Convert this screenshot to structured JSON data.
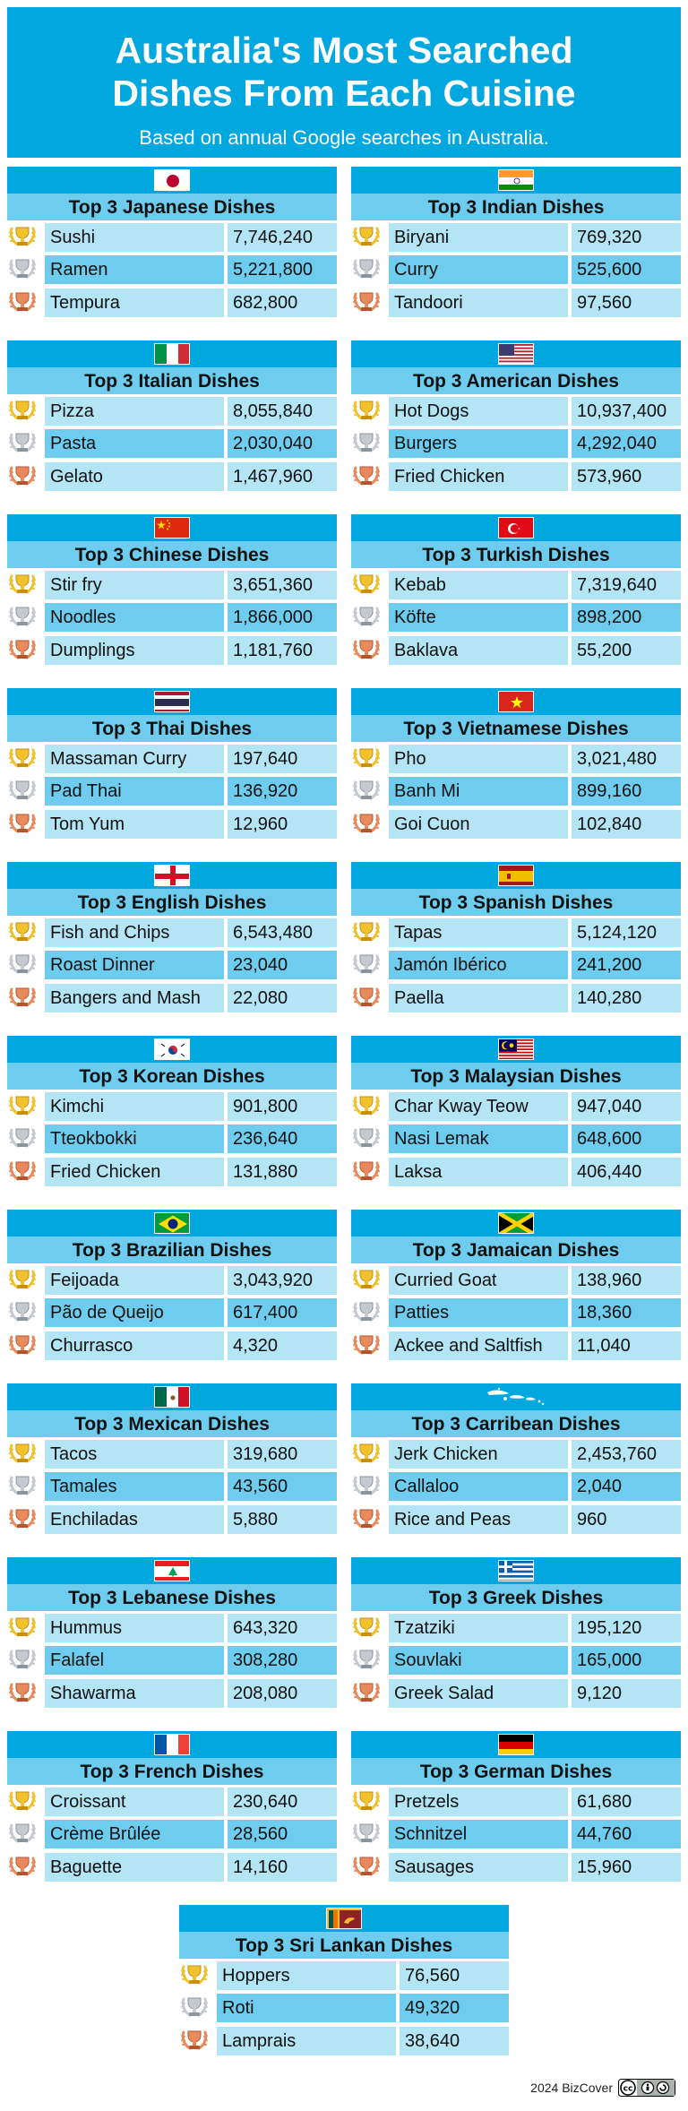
{
  "header": {
    "title": "Australia's Most Searched\nDishes From Each Cuisine",
    "subtitle": "Based on annual Google searches in Australia."
  },
  "colors": {
    "header_bg": "#01a7df",
    "title_bar": "#6ecdee",
    "row_light": "#b3e5f5",
    "row_mid": "#6ecdee",
    "gold": "#f2c12e",
    "silver": "#b8bfc6",
    "bronze": "#e0764b"
  },
  "chart_data": {
    "type": "table",
    "title": "Australia's Most Searched Dishes From Each Cuisine",
    "subtitle": "Based on annual Google searches in Australia.",
    "cards": [
      {
        "title": "Top 3 Japanese Dishes",
        "flag": "japan-flag",
        "rows": [
          {
            "dish": "Sushi",
            "value": "7,746,240"
          },
          {
            "dish": "Ramen",
            "value": "5,221,800"
          },
          {
            "dish": "Tempura",
            "value": "682,800"
          }
        ]
      },
      {
        "title": "Top 3 Indian Dishes",
        "flag": "india-flag",
        "rows": [
          {
            "dish": "Biryani",
            "value": "769,320"
          },
          {
            "dish": "Curry",
            "value": "525,600"
          },
          {
            "dish": "Tandoori",
            "value": "97,560"
          }
        ]
      },
      {
        "title": "Top 3 Italian Dishes",
        "flag": "italy-flag",
        "rows": [
          {
            "dish": "Pizza",
            "value": "8,055,840"
          },
          {
            "dish": "Pasta",
            "value": "2,030,040"
          },
          {
            "dish": "Gelato",
            "value": "1,467,960"
          }
        ]
      },
      {
        "title": "Top 3 American Dishes",
        "flag": "usa-flag",
        "rows": [
          {
            "dish": "Hot Dogs",
            "value": "10,937,400"
          },
          {
            "dish": "Burgers",
            "value": "4,292,040"
          },
          {
            "dish": "Fried Chicken",
            "value": "573,960"
          }
        ]
      },
      {
        "title": "Top 3 Chinese Dishes",
        "flag": "china-flag",
        "rows": [
          {
            "dish": "Stir fry",
            "value": "3,651,360"
          },
          {
            "dish": "Noodles",
            "value": "1,866,000"
          },
          {
            "dish": "Dumplings",
            "value": "1,181,760"
          }
        ]
      },
      {
        "title": "Top 3 Turkish Dishes",
        "flag": "turkey-flag",
        "rows": [
          {
            "dish": "Kebab",
            "value": "7,319,640"
          },
          {
            "dish": "Köfte",
            "value": "898,200"
          },
          {
            "dish": "Baklava",
            "value": "55,200"
          }
        ]
      },
      {
        "title": "Top 3 Thai Dishes",
        "flag": "thailand-flag",
        "rows": [
          {
            "dish": "Massaman Curry",
            "value": "197,640"
          },
          {
            "dish": "Pad Thai",
            "value": "136,920"
          },
          {
            "dish": "Tom Yum",
            "value": "12,960"
          }
        ]
      },
      {
        "title": "Top 3 Vietnamese Dishes",
        "flag": "vietnam-flag",
        "rows": [
          {
            "dish": "Pho",
            "value": "3,021,480"
          },
          {
            "dish": "Banh Mi",
            "value": "899,160"
          },
          {
            "dish": "Goi Cuon",
            "value": "102,840"
          }
        ]
      },
      {
        "title": "Top 3 English Dishes",
        "flag": "england-flag",
        "rows": [
          {
            "dish": "Fish and Chips",
            "value": "6,543,480"
          },
          {
            "dish": "Roast Dinner",
            "value": "23,040"
          },
          {
            "dish": "Bangers and Mash",
            "value": "22,080"
          }
        ]
      },
      {
        "title": "Top 3 Spanish Dishes",
        "flag": "spain-flag",
        "rows": [
          {
            "dish": "Tapas",
            "value": "5,124,120"
          },
          {
            "dish": "Jamón Ibérico",
            "value": "241,200"
          },
          {
            "dish": "Paella",
            "value": "140,280"
          }
        ]
      },
      {
        "title": "Top 3 Korean Dishes",
        "flag": "korea-flag",
        "rows": [
          {
            "dish": "Kimchi",
            "value": "901,800"
          },
          {
            "dish": "Tteokbokki",
            "value": "236,640"
          },
          {
            "dish": "Fried Chicken",
            "value": "131,880"
          }
        ]
      },
      {
        "title": "Top 3 Malaysian Dishes",
        "flag": "malaysia-flag",
        "rows": [
          {
            "dish": "Char Kway Teow",
            "value": "947,040"
          },
          {
            "dish": "Nasi Lemak",
            "value": "648,600"
          },
          {
            "dish": "Laksa",
            "value": "406,440"
          }
        ]
      },
      {
        "title": "Top 3 Brazilian Dishes",
        "flag": "brazil-flag",
        "rows": [
          {
            "dish": "Feijoada",
            "value": "3,043,920"
          },
          {
            "dish": "Pão de Queijo",
            "value": "617,400"
          },
          {
            "dish": "Churrasco",
            "value": "4,320"
          }
        ]
      },
      {
        "title": "Top 3 Jamaican Dishes",
        "flag": "jamaica-flag",
        "rows": [
          {
            "dish": "Curried Goat",
            "value": "138,960"
          },
          {
            "dish": "Patties",
            "value": "18,360"
          },
          {
            "dish": "Ackee and Saltfish",
            "value": "11,040"
          }
        ]
      },
      {
        "title": "Top 3 Mexican Dishes",
        "flag": "mexico-flag",
        "rows": [
          {
            "dish": "Tacos",
            "value": "319,680"
          },
          {
            "dish": "Tamales",
            "value": "43,560"
          },
          {
            "dish": "Enchiladas",
            "value": "5,880"
          }
        ]
      },
      {
        "title": "Top 3 Carribean Dishes",
        "flag": "caribbean-islands-icon",
        "rows": [
          {
            "dish": "Jerk Chicken",
            "value": "2,453,760"
          },
          {
            "dish": "Callaloo",
            "value": "2,040"
          },
          {
            "dish": "Rice and Peas",
            "value": "960"
          }
        ]
      },
      {
        "title": "Top 3 Lebanese Dishes",
        "flag": "lebanon-flag",
        "rows": [
          {
            "dish": "Hummus",
            "value": "643,320"
          },
          {
            "dish": "Falafel",
            "value": "308,280"
          },
          {
            "dish": "Shawarma",
            "value": "208,080"
          }
        ]
      },
      {
        "title": "Top 3 Greek Dishes",
        "flag": "greece-flag",
        "rows": [
          {
            "dish": "Tzatziki",
            "value": "195,120"
          },
          {
            "dish": "Souvlaki",
            "value": "165,000"
          },
          {
            "dish": "Greek Salad",
            "value": "9,120"
          }
        ]
      },
      {
        "title": "Top 3 French Dishes",
        "flag": "france-flag",
        "rows": [
          {
            "dish": "Croissant",
            "value": "230,640"
          },
          {
            "dish": "Crème Brûlée",
            "value": "28,560"
          },
          {
            "dish": "Baguette",
            "value": "14,160"
          }
        ]
      },
      {
        "title": "Top 3 German Dishes",
        "flag": "germany-flag",
        "rows": [
          {
            "dish": "Pretzels",
            "value": "61,680"
          },
          {
            "dish": "Schnitzel",
            "value": "44,760"
          },
          {
            "dish": "Sausages",
            "value": "15,960"
          }
        ]
      },
      {
        "title": "Top 3 Sri Lankan Dishes",
        "flag": "sri-lanka-flag",
        "rows": [
          {
            "dish": "Hoppers",
            "value": "76,560"
          },
          {
            "dish": "Roti",
            "value": "49,320"
          },
          {
            "dish": "Lamprais",
            "value": "38,640"
          }
        ]
      }
    ]
  },
  "footer": {
    "credit": "2024 BizCover",
    "license_icon": "creative-commons-by-icon"
  }
}
